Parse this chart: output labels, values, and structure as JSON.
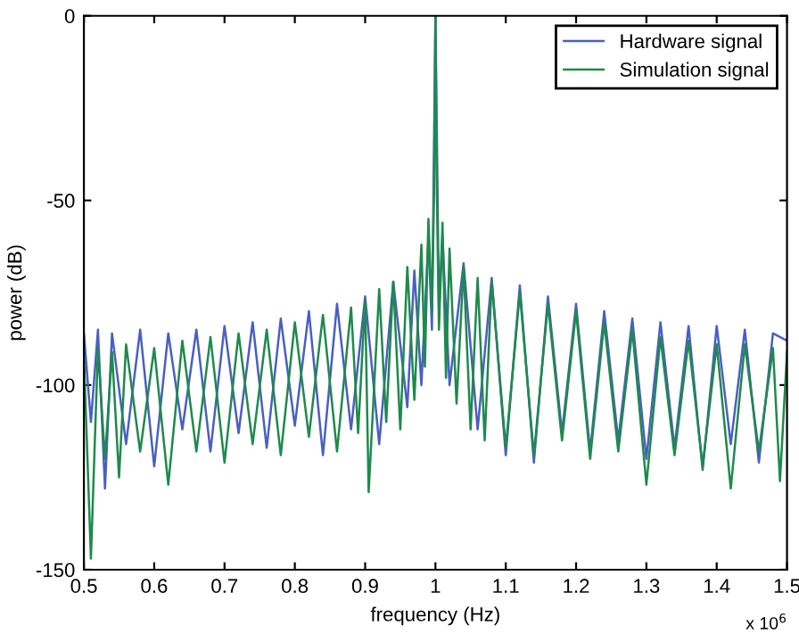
{
  "chart_data": {
    "type": "line",
    "xlabel": "frequency (Hz)",
    "ylabel": "power (dB)",
    "xlim": [
      0.5,
      1.5
    ],
    "xticks": [
      0.5,
      0.6,
      0.7,
      0.8,
      0.9,
      1,
      1.1,
      1.2,
      1.3,
      1.4,
      1.5
    ],
    "ylim": [
      -150,
      0
    ],
    "yticks": [
      -150,
      -100,
      -50,
      0
    ],
    "grid": false,
    "legend": "top right",
    "marker": "none",
    "line_style": "solid",
    "annotations": [
      "x 10$^{6}$"
    ],
    "series": [
      {
        "name": "Hardware signal",
        "color": "#4a5fc1",
        "x": [
          0.5,
          0.51,
          0.52,
          0.53,
          0.54,
          0.56,
          0.58,
          0.6,
          0.62,
          0.64,
          0.66,
          0.68,
          0.7,
          0.72,
          0.74,
          0.76,
          0.78,
          0.8,
          0.82,
          0.84,
          0.86,
          0.88,
          0.9,
          0.92,
          0.94,
          0.96,
          0.97,
          0.98,
          0.99,
          0.995,
          1.0,
          1.005,
          1.01,
          1.02,
          1.04,
          1.06,
          1.08,
          1.1,
          1.12,
          1.14,
          1.16,
          1.18,
          1.2,
          1.22,
          1.24,
          1.26,
          1.28,
          1.3,
          1.32,
          1.34,
          1.36,
          1.38,
          1.4,
          1.42,
          1.44,
          1.46,
          1.48,
          1.5
        ],
        "values": [
          -86,
          -110,
          -85,
          -128,
          -86,
          -116,
          -85,
          -122,
          -86,
          -112,
          -85,
          -118,
          -84,
          -113,
          -83,
          -117,
          -82,
          -111,
          -80,
          -119,
          -78,
          -112,
          -76,
          -116,
          -72,
          -106,
          -69,
          -100,
          -60,
          -85,
          0,
          -80,
          -60,
          -100,
          -67,
          -112,
          -71,
          -119,
          -73,
          -121,
          -76,
          -113,
          -78,
          -118,
          -80,
          -115,
          -82,
          -120,
          -83,
          -117,
          -84,
          -123,
          -84,
          -116,
          -85,
          -121,
          -86,
          -88
        ]
      },
      {
        "name": "Simulation signal",
        "color": "#1e8a4c",
        "x": [
          0.5,
          0.51,
          0.52,
          0.53,
          0.54,
          0.55,
          0.56,
          0.58,
          0.6,
          0.62,
          0.64,
          0.66,
          0.68,
          0.7,
          0.72,
          0.74,
          0.76,
          0.78,
          0.8,
          0.82,
          0.84,
          0.86,
          0.88,
          0.89,
          0.9,
          0.905,
          0.92,
          0.93,
          0.94,
          0.95,
          0.96,
          0.97,
          0.98,
          0.985,
          0.99,
          0.995,
          0.998,
          1.0,
          1.002,
          1.005,
          1.01,
          1.015,
          1.02,
          1.03,
          1.04,
          1.05,
          1.06,
          1.07,
          1.08,
          1.1,
          1.12,
          1.14,
          1.16,
          1.18,
          1.2,
          1.22,
          1.24,
          1.26,
          1.28,
          1.3,
          1.32,
          1.34,
          1.36,
          1.38,
          1.4,
          1.42,
          1.44,
          1.46,
          1.48,
          1.49,
          1.5
        ],
        "values": [
          -92,
          -147,
          -90,
          -120,
          -91,
          -125,
          -89,
          -118,
          -90,
          -127,
          -88,
          -118,
          -87,
          -121,
          -86,
          -116,
          -85,
          -119,
          -83,
          -114,
          -81,
          -118,
          -79,
          -113,
          -77,
          -129,
          -74,
          -110,
          -72,
          -112,
          -68,
          -104,
          -62,
          -95,
          -55,
          -80,
          -48,
          0,
          -48,
          -85,
          -56,
          -98,
          -63,
          -105,
          -68,
          -112,
          -71,
          -115,
          -72,
          -117,
          -75,
          -119,
          -78,
          -115,
          -80,
          -120,
          -83,
          -118,
          -85,
          -127,
          -87,
          -119,
          -88,
          -122,
          -89,
          -128,
          -89,
          -118,
          -90,
          -126,
          -91
        ]
      }
    ]
  }
}
